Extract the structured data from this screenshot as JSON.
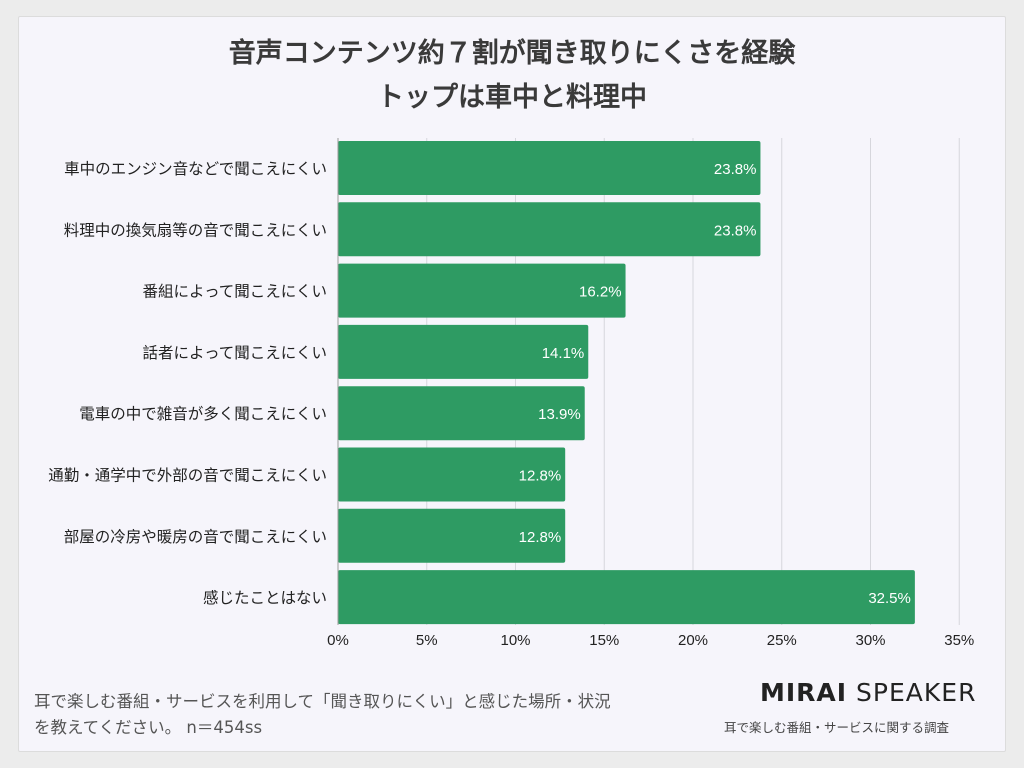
{
  "header": {
    "title_line1": "音声コンテンツ約７割が聞き取りにくさを経験",
    "title_line2": "トップは車中と料理中"
  },
  "colors": {
    "bar": "#2e9b63",
    "grid": "#d6d6dc",
    "label_text": "#222222",
    "value_text": "#ffffff"
  },
  "chart_data": {
    "type": "bar",
    "orientation": "horizontal",
    "title": "音声コンテンツ約７割が聞き取りにくさを経験 トップは車中と料理中",
    "categories": [
      "車中のエンジン音などで聞こえにくい",
      "料理中の換気扇等の音で聞こえにくい",
      "番組によって聞こえにくい",
      "話者によって聞こえにくい",
      "電車の中で雑音が多く聞こえにくい",
      "通勤・通学中で外部の音で聞こえにくい",
      "部屋の冷房や暖房の音で聞こえにくい",
      "感じたことはない"
    ],
    "values": [
      23.8,
      23.8,
      16.2,
      14.1,
      13.9,
      12.8,
      12.8,
      32.5
    ],
    "value_labels": [
      "23.8%",
      "23.8%",
      "16.2%",
      "14.1%",
      "13.9%",
      "12.8%",
      "12.8%",
      "32.5%"
    ],
    "xlim": [
      0,
      35
    ],
    "xticks": [
      0,
      5,
      10,
      15,
      20,
      25,
      30,
      35
    ],
    "xtick_labels": [
      "0%",
      "5%",
      "10%",
      "15%",
      "20%",
      "25%",
      "30%",
      "35%"
    ],
    "xlabel": "",
    "ylabel": "",
    "grid": true
  },
  "footer": {
    "note_line1": "耳で楽しむ番組・サービスを利用して「聞き取りにくい」と感じた場所・状況",
    "note_line2": "を教えてください。 n＝454ss",
    "brand_bold": "MIRAI",
    "brand_light": " SPEAKER",
    "brand_sub": "耳で楽しむ番組・サービスに関する調査"
  }
}
